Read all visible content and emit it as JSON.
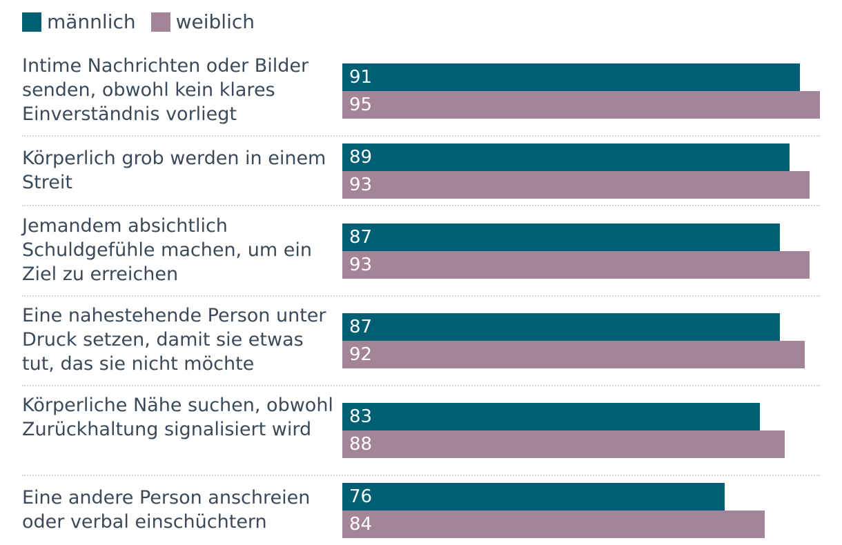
{
  "colors": {
    "male": "#005f73",
    "female": "#a38597",
    "text": "#3b4a5a",
    "separator": "#cfd5da"
  },
  "chart_data": {
    "type": "bar",
    "orientation": "horizontal",
    "legend_position": "top-left",
    "xlim": [
      0,
      95
    ],
    "categories": [
      "Intime Nachrichten oder Bilder senden, obwohl kein klares Einverständnis vorliegt",
      "Körperlich grob werden in einem Streit",
      "Jemandem absichtlich Schuldgefühle machen, um ein Ziel zu erreichen",
      "Eine nahestehende Person unter Druck setzen, damit sie etwas tut, das sie nicht möchte",
      "Körperliche Nähe suchen, obwohl Zurückhaltung signalisiert wird",
      "Eine andere Person anschreien oder verbal einschüchtern"
    ],
    "series": [
      {
        "name": "männlich",
        "values": [
          91,
          89,
          87,
          87,
          83,
          76
        ]
      },
      {
        "name": "weiblich",
        "values": [
          95,
          93,
          93,
          92,
          88,
          84
        ]
      }
    ]
  }
}
